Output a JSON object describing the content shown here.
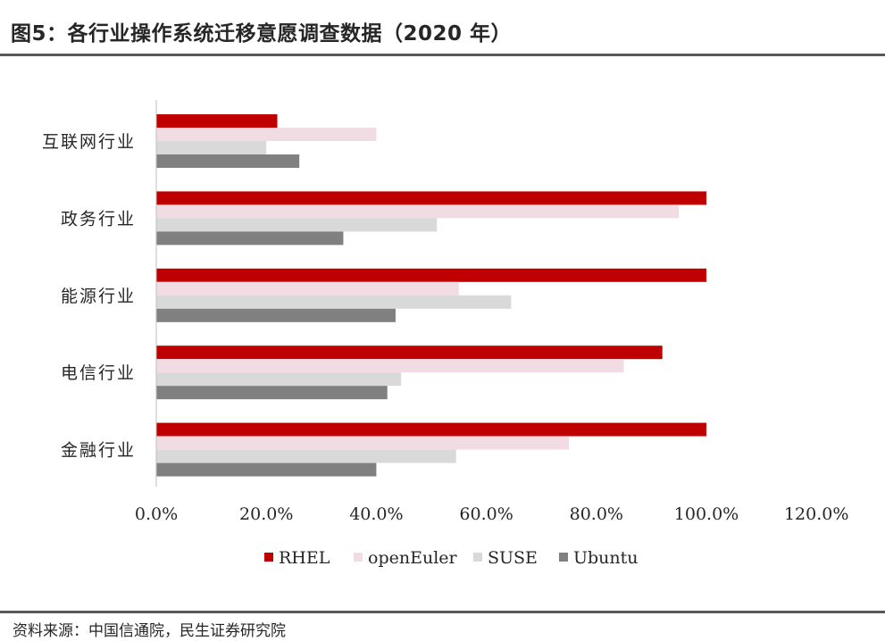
{
  "title": "图5：各行业操作系统迁移意愿调查数据（2020 年）",
  "source": "资料来源：中国信通院，民生证券研究院",
  "colors": {
    "RHEL": "#c00000",
    "openEuler": "#f2dce3",
    "SUSE": "#d9d9d9",
    "Ubuntu": "#808080"
  },
  "chart_data": {
    "type": "bar",
    "orientation": "horizontal",
    "categories": [
      "互联网行业",
      "政务行业",
      "能源行业",
      "电信行业",
      "金融行业"
    ],
    "series": [
      {
        "name": "RHEL",
        "values": [
          22.0,
          100.0,
          100.0,
          92.0,
          100.0
        ]
      },
      {
        "name": "openEuler",
        "values": [
          40.0,
          95.0,
          55.0,
          85.0,
          75.0
        ]
      },
      {
        "name": "SUSE",
        "values": [
          20.0,
          51.0,
          64.5,
          44.5,
          54.5
        ]
      },
      {
        "name": "Ubuntu",
        "values": [
          26.0,
          34.0,
          43.5,
          42.0,
          40.0
        ]
      }
    ],
    "xlim": [
      0,
      120
    ],
    "x_ticks": [
      "0.0%",
      "20.0%",
      "40.0%",
      "60.0%",
      "80.0%",
      "100.0%",
      "120.0%"
    ],
    "grid": false,
    "legend_position": "bottom"
  }
}
